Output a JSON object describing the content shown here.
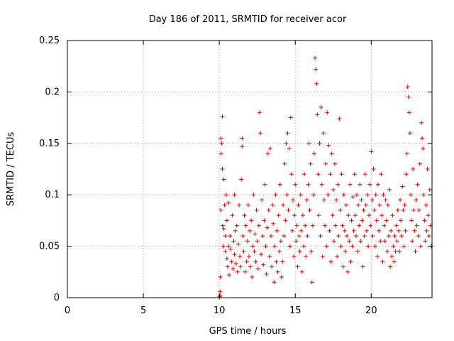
{
  "chart_data": {
    "type": "scatter",
    "title": "Day 186 of 2011, SRMTID for receiver acor",
    "xlabel": "GPS time / hours",
    "ylabel": "SRMTID / TECUs",
    "xlim": [
      0,
      24
    ],
    "ylim": [
      0,
      0.25
    ],
    "xticks": [
      "0",
      "5",
      "10",
      "15",
      "20"
    ],
    "xtick_values": [
      0,
      5,
      10,
      15,
      20
    ],
    "yticks": [
      "0",
      "0.05",
      "0.1",
      "0.15",
      "0.2",
      "0.25"
    ],
    "ytick_values": [
      0,
      0.05,
      0.1,
      0.15,
      0.2,
      0.25
    ],
    "grid": true,
    "marker": "+",
    "color": "#e00000",
    "series": [
      {
        "name": "SRMTID",
        "points": [
          [
            10.0,
            0.0
          ],
          [
            10.02,
            0.001
          ],
          [
            10.05,
            0.002
          ],
          [
            10.05,
            0.006
          ],
          [
            10.07,
            0.02
          ],
          [
            10.1,
            0.085
          ],
          [
            10.1,
            0.155
          ],
          [
            10.12,
            0.14
          ],
          [
            10.15,
            0.15
          ],
          [
            10.2,
            0.176
          ],
          [
            10.2,
            0.125
          ],
          [
            10.22,
            0.07
          ],
          [
            10.25,
            0.05
          ],
          [
            10.3,
            0.115
          ],
          [
            10.3,
            0.067
          ],
          [
            10.35,
            0.09
          ],
          [
            10.4,
            0.06
          ],
          [
            10.4,
            0.045
          ],
          [
            10.45,
            0.1
          ],
          [
            10.5,
            0.038
          ],
          [
            10.5,
            0.075
          ],
          [
            10.55,
            0.03
          ],
          [
            10.6,
            0.05
          ],
          [
            10.6,
            0.092
          ],
          [
            10.65,
            0.022
          ],
          [
            10.7,
            0.06
          ],
          [
            10.75,
            0.047
          ],
          [
            10.8,
            0.035
          ],
          [
            10.85,
            0.08
          ],
          [
            10.9,
            0.028
          ],
          [
            10.95,
            0.055
          ],
          [
            11.0,
            0.042
          ],
          [
            11.0,
            0.1
          ],
          [
            11.05,
            0.065
          ],
          [
            11.1,
            0.033
          ],
          [
            11.15,
            0.07
          ],
          [
            11.2,
            0.025
          ],
          [
            11.25,
            0.052
          ],
          [
            11.3,
            0.09
          ],
          [
            11.35,
            0.04
          ],
          [
            11.4,
            0.03
          ],
          [
            11.45,
            0.115
          ],
          [
            11.5,
            0.155
          ],
          [
            11.5,
            0.147
          ],
          [
            11.55,
            0.06
          ],
          [
            11.6,
            0.045
          ],
          [
            11.65,
            0.08
          ],
          [
            11.7,
            0.025
          ],
          [
            11.75,
            0.07
          ],
          [
            11.8,
            0.035
          ],
          [
            11.85,
            0.055
          ],
          [
            11.9,
            0.09
          ],
          [
            11.95,
            0.04
          ],
          [
            12.0,
            0.065
          ],
          [
            12.05,
            0.03
          ],
          [
            12.1,
            0.075
          ],
          [
            12.15,
            0.02
          ],
          [
            12.2,
            0.05
          ],
          [
            12.25,
            0.1
          ],
          [
            12.3,
            0.045
          ],
          [
            12.35,
            0.062
          ],
          [
            12.4,
            0.035
          ],
          [
            12.45,
            0.085
          ],
          [
            12.5,
            0.055
          ],
          [
            12.55,
            0.028
          ],
          [
            12.6,
            0.07
          ],
          [
            12.65,
            0.18
          ],
          [
            12.7,
            0.16
          ],
          [
            12.75,
            0.042
          ],
          [
            12.8,
            0.095
          ],
          [
            12.85,
            0.06
          ],
          [
            12.9,
            0.032
          ],
          [
            12.95,
            0.075
          ],
          [
            13.0,
            0.11
          ],
          [
            13.05,
            0.05
          ],
          [
            13.1,
            0.023
          ],
          [
            13.15,
            0.068
          ],
          [
            13.2,
            0.14
          ],
          [
            13.25,
            0.085
          ],
          [
            13.3,
            0.04
          ],
          [
            13.35,
            0.145
          ],
          [
            13.4,
            0.06
          ],
          [
            13.45,
            0.03
          ],
          [
            13.5,
            0.09
          ],
          [
            13.55,
            0.072
          ],
          [
            13.6,
            0.015
          ],
          [
            13.65,
            0.05
          ],
          [
            13.7,
            0.1
          ],
          [
            13.75,
            0.035
          ],
          [
            13.8,
            0.065
          ],
          [
            13.85,
            0.025
          ],
          [
            13.9,
            0.08
          ],
          [
            13.95,
            0.045
          ],
          [
            14.0,
            0.11
          ],
          [
            14.05,
            0.055
          ],
          [
            14.1,
            0.02
          ],
          [
            14.15,
            0.035
          ],
          [
            14.2,
            0.09
          ],
          [
            14.25,
            0.06
          ],
          [
            14.3,
            0.13
          ],
          [
            14.35,
            0.075
          ],
          [
            14.4,
            0.15
          ],
          [
            14.45,
            0.1
          ],
          [
            14.5,
            0.16
          ],
          [
            14.55,
            0.085
          ],
          [
            14.6,
            0.145
          ],
          [
            14.65,
            0.05
          ],
          [
            14.7,
            0.175
          ],
          [
            14.75,
            0.12
          ],
          [
            14.8,
            0.065
          ],
          [
            14.85,
            0.095
          ],
          [
            14.9,
            0.04
          ],
          [
            14.95,
            0.08
          ],
          [
            15.0,
            0.11
          ],
          [
            15.05,
            0.055
          ],
          [
            15.1,
            0.07
          ],
          [
            15.15,
            0.03
          ],
          [
            15.2,
            0.09
          ],
          [
            15.25,
            0.06
          ],
          [
            15.3,
            0.045
          ],
          [
            15.35,
            0.1
          ],
          [
            15.4,
            0.065
          ],
          [
            15.45,
            0.025
          ],
          [
            15.5,
            0.08
          ],
          [
            15.55,
            0.05
          ],
          [
            15.6,
            0.12
          ],
          [
            15.65,
            0.07
          ],
          [
            15.7,
            0.04
          ],
          [
            15.75,
            0.095
          ],
          [
            15.8,
            0.06
          ],
          [
            15.85,
            0.11
          ],
          [
            15.9,
            0.15
          ],
          [
            15.95,
            0.085
          ],
          [
            16.0,
            0.13
          ],
          [
            16.05,
            0.045
          ],
          [
            16.1,
            0.015
          ],
          [
            16.15,
            0.07
          ],
          [
            16.2,
            0.1
          ],
          [
            16.25,
            0.14
          ],
          [
            16.3,
            0.233
          ],
          [
            16.35,
            0.222
          ],
          [
            16.4,
            0.208
          ],
          [
            16.45,
            0.178
          ],
          [
            16.5,
            0.12
          ],
          [
            16.55,
            0.08
          ],
          [
            16.6,
            0.15
          ],
          [
            16.65,
            0.06
          ],
          [
            16.7,
            0.185
          ],
          [
            16.75,
            0.11
          ],
          [
            16.8,
            0.04
          ],
          [
            16.85,
            0.16
          ],
          [
            16.9,
            0.095
          ],
          [
            16.95,
            0.07
          ],
          [
            17.0,
            0.13
          ],
          [
            17.05,
            0.05
          ],
          [
            17.1,
            0.18
          ],
          [
            17.15,
            0.1
          ],
          [
            17.2,
            0.148
          ],
          [
            17.25,
            0.065
          ],
          [
            17.3,
            0.12
          ],
          [
            17.35,
            0.035
          ],
          [
            17.4,
            0.14
          ],
          [
            17.45,
            0.08
          ],
          [
            17.5,
            0.105
          ],
          [
            17.55,
            0.055
          ],
          [
            17.6,
            0.13
          ],
          [
            17.65,
            0.07
          ],
          [
            17.7,
            0.095
          ],
          [
            17.75,
            0.04
          ],
          [
            17.8,
            0.11
          ],
          [
            17.85,
            0.06
          ],
          [
            17.9,
            0.174
          ],
          [
            17.95,
            0.085
          ],
          [
            18.0,
            0.05
          ],
          [
            18.05,
            0.12
          ],
          [
            18.1,
            0.07
          ],
          [
            18.15,
            0.03
          ],
          [
            18.2,
            0.1
          ],
          [
            18.25,
            0.065
          ],
          [
            18.3,
            0.045
          ],
          [
            18.35,
            0.09
          ],
          [
            18.4,
            0.06
          ],
          [
            18.45,
            0.025
          ],
          [
            18.5,
            0.08
          ],
          [
            18.55,
            0.055
          ],
          [
            18.6,
            0.11
          ],
          [
            18.65,
            0.035
          ],
          [
            18.7,
            0.075
          ],
          [
            18.75,
            0.05
          ],
          [
            18.8,
            0.098
          ],
          [
            18.85,
            0.065
          ],
          [
            18.9,
            0.12
          ],
          [
            18.95,
            0.08
          ],
          [
            19.0,
            0.06
          ],
          [
            19.05,
            0.1
          ],
          [
            19.1,
            0.045
          ],
          [
            19.15,
            0.09
          ],
          [
            19.2,
            0.07
          ],
          [
            19.25,
            0.11
          ],
          [
            19.3,
            0.055
          ],
          [
            19.35,
            0.095
          ],
          [
            19.4,
            0.075
          ],
          [
            19.45,
            0.03
          ],
          [
            19.5,
            0.085
          ],
          [
            19.55,
            0.06
          ],
          [
            19.6,
            0.12
          ],
          [
            19.65,
            0.09
          ],
          [
            19.7,
            0.065
          ],
          [
            19.75,
            0.1
          ],
          [
            19.8,
            0.05
          ],
          [
            19.85,
            0.08
          ],
          [
            19.9,
            0.11
          ],
          [
            19.95,
            0.07
          ],
          [
            20.0,
            0.142
          ],
          [
            20.05,
            0.095
          ],
          [
            20.1,
            0.06
          ],
          [
            20.15,
            0.125
          ],
          [
            20.2,
            0.085
          ],
          [
            20.25,
            0.05
          ],
          [
            20.3,
            0.1
          ],
          [
            20.35,
            0.075
          ],
          [
            20.4,
            0.04
          ],
          [
            20.45,
            0.11
          ],
          [
            20.5,
            0.065
          ],
          [
            20.55,
            0.09
          ],
          [
            20.6,
            0.055
          ],
          [
            20.65,
            0.12
          ],
          [
            20.7,
            0.08
          ],
          [
            20.75,
            0.035
          ],
          [
            20.8,
            0.1
          ],
          [
            20.85,
            0.07
          ],
          [
            20.9,
            0.055
          ],
          [
            20.95,
            0.095
          ],
          [
            21.0,
            0.075
          ],
          [
            21.05,
            0.045
          ],
          [
            21.1,
            0.09
          ],
          [
            21.15,
            0.06
          ],
          [
            21.2,
            0.105
          ],
          [
            21.25,
            0.03
          ],
          [
            21.3,
            0.065
          ],
          [
            21.35,
            0.04
          ],
          [
            21.4,
            0.08
          ],
          [
            21.45,
            0.05
          ],
          [
            21.5,
            0.035
          ],
          [
            21.55,
            0.06
          ],
          [
            21.6,
            0.045
          ],
          [
            21.65,
            0.07
          ],
          [
            21.7,
            0.055
          ],
          [
            21.75,
            0.085
          ],
          [
            21.8,
            0.065
          ],
          [
            21.85,
            0.045
          ],
          [
            21.9,
            0.095
          ],
          [
            21.95,
            0.075
          ],
          [
            22.0,
            0.06
          ],
          [
            22.05,
            0.108
          ],
          [
            22.1,
            0.085
          ],
          [
            22.15,
            0.05
          ],
          [
            22.2,
            0.09
          ],
          [
            22.25,
            0.065
          ],
          [
            22.3,
            0.12
          ],
          [
            22.35,
            0.14
          ],
          [
            22.4,
            0.205
          ],
          [
            22.45,
            0.195
          ],
          [
            22.5,
            0.18
          ],
          [
            22.55,
            0.16
          ],
          [
            22.6,
            0.1
          ],
          [
            22.65,
            0.075
          ],
          [
            22.7,
            0.055
          ],
          [
            22.75,
            0.125
          ],
          [
            22.8,
            0.085
          ],
          [
            22.85,
            0.065
          ],
          [
            22.9,
            0.045
          ],
          [
            22.95,
            0.095
          ],
          [
            23.0,
            0.07
          ],
          [
            23.05,
            0.11
          ],
          [
            23.1,
            0.06
          ],
          [
            23.15,
            0.085
          ],
          [
            23.2,
            0.13
          ],
          [
            23.25,
            0.05
          ],
          [
            23.3,
            0.17
          ],
          [
            23.35,
            0.155
          ],
          [
            23.4,
            0.145
          ],
          [
            23.45,
            0.1
          ],
          [
            23.5,
            0.075
          ],
          [
            23.55,
            0.055
          ],
          [
            23.6,
            0.09
          ],
          [
            23.65,
            0.065
          ],
          [
            23.7,
            0.125
          ],
          [
            23.75,
            0.08
          ],
          [
            23.8,
            0.06
          ],
          [
            23.85,
            0.105
          ],
          [
            23.9,
            0.07
          ],
          [
            23.95,
            0.05
          ]
        ]
      }
    ]
  }
}
